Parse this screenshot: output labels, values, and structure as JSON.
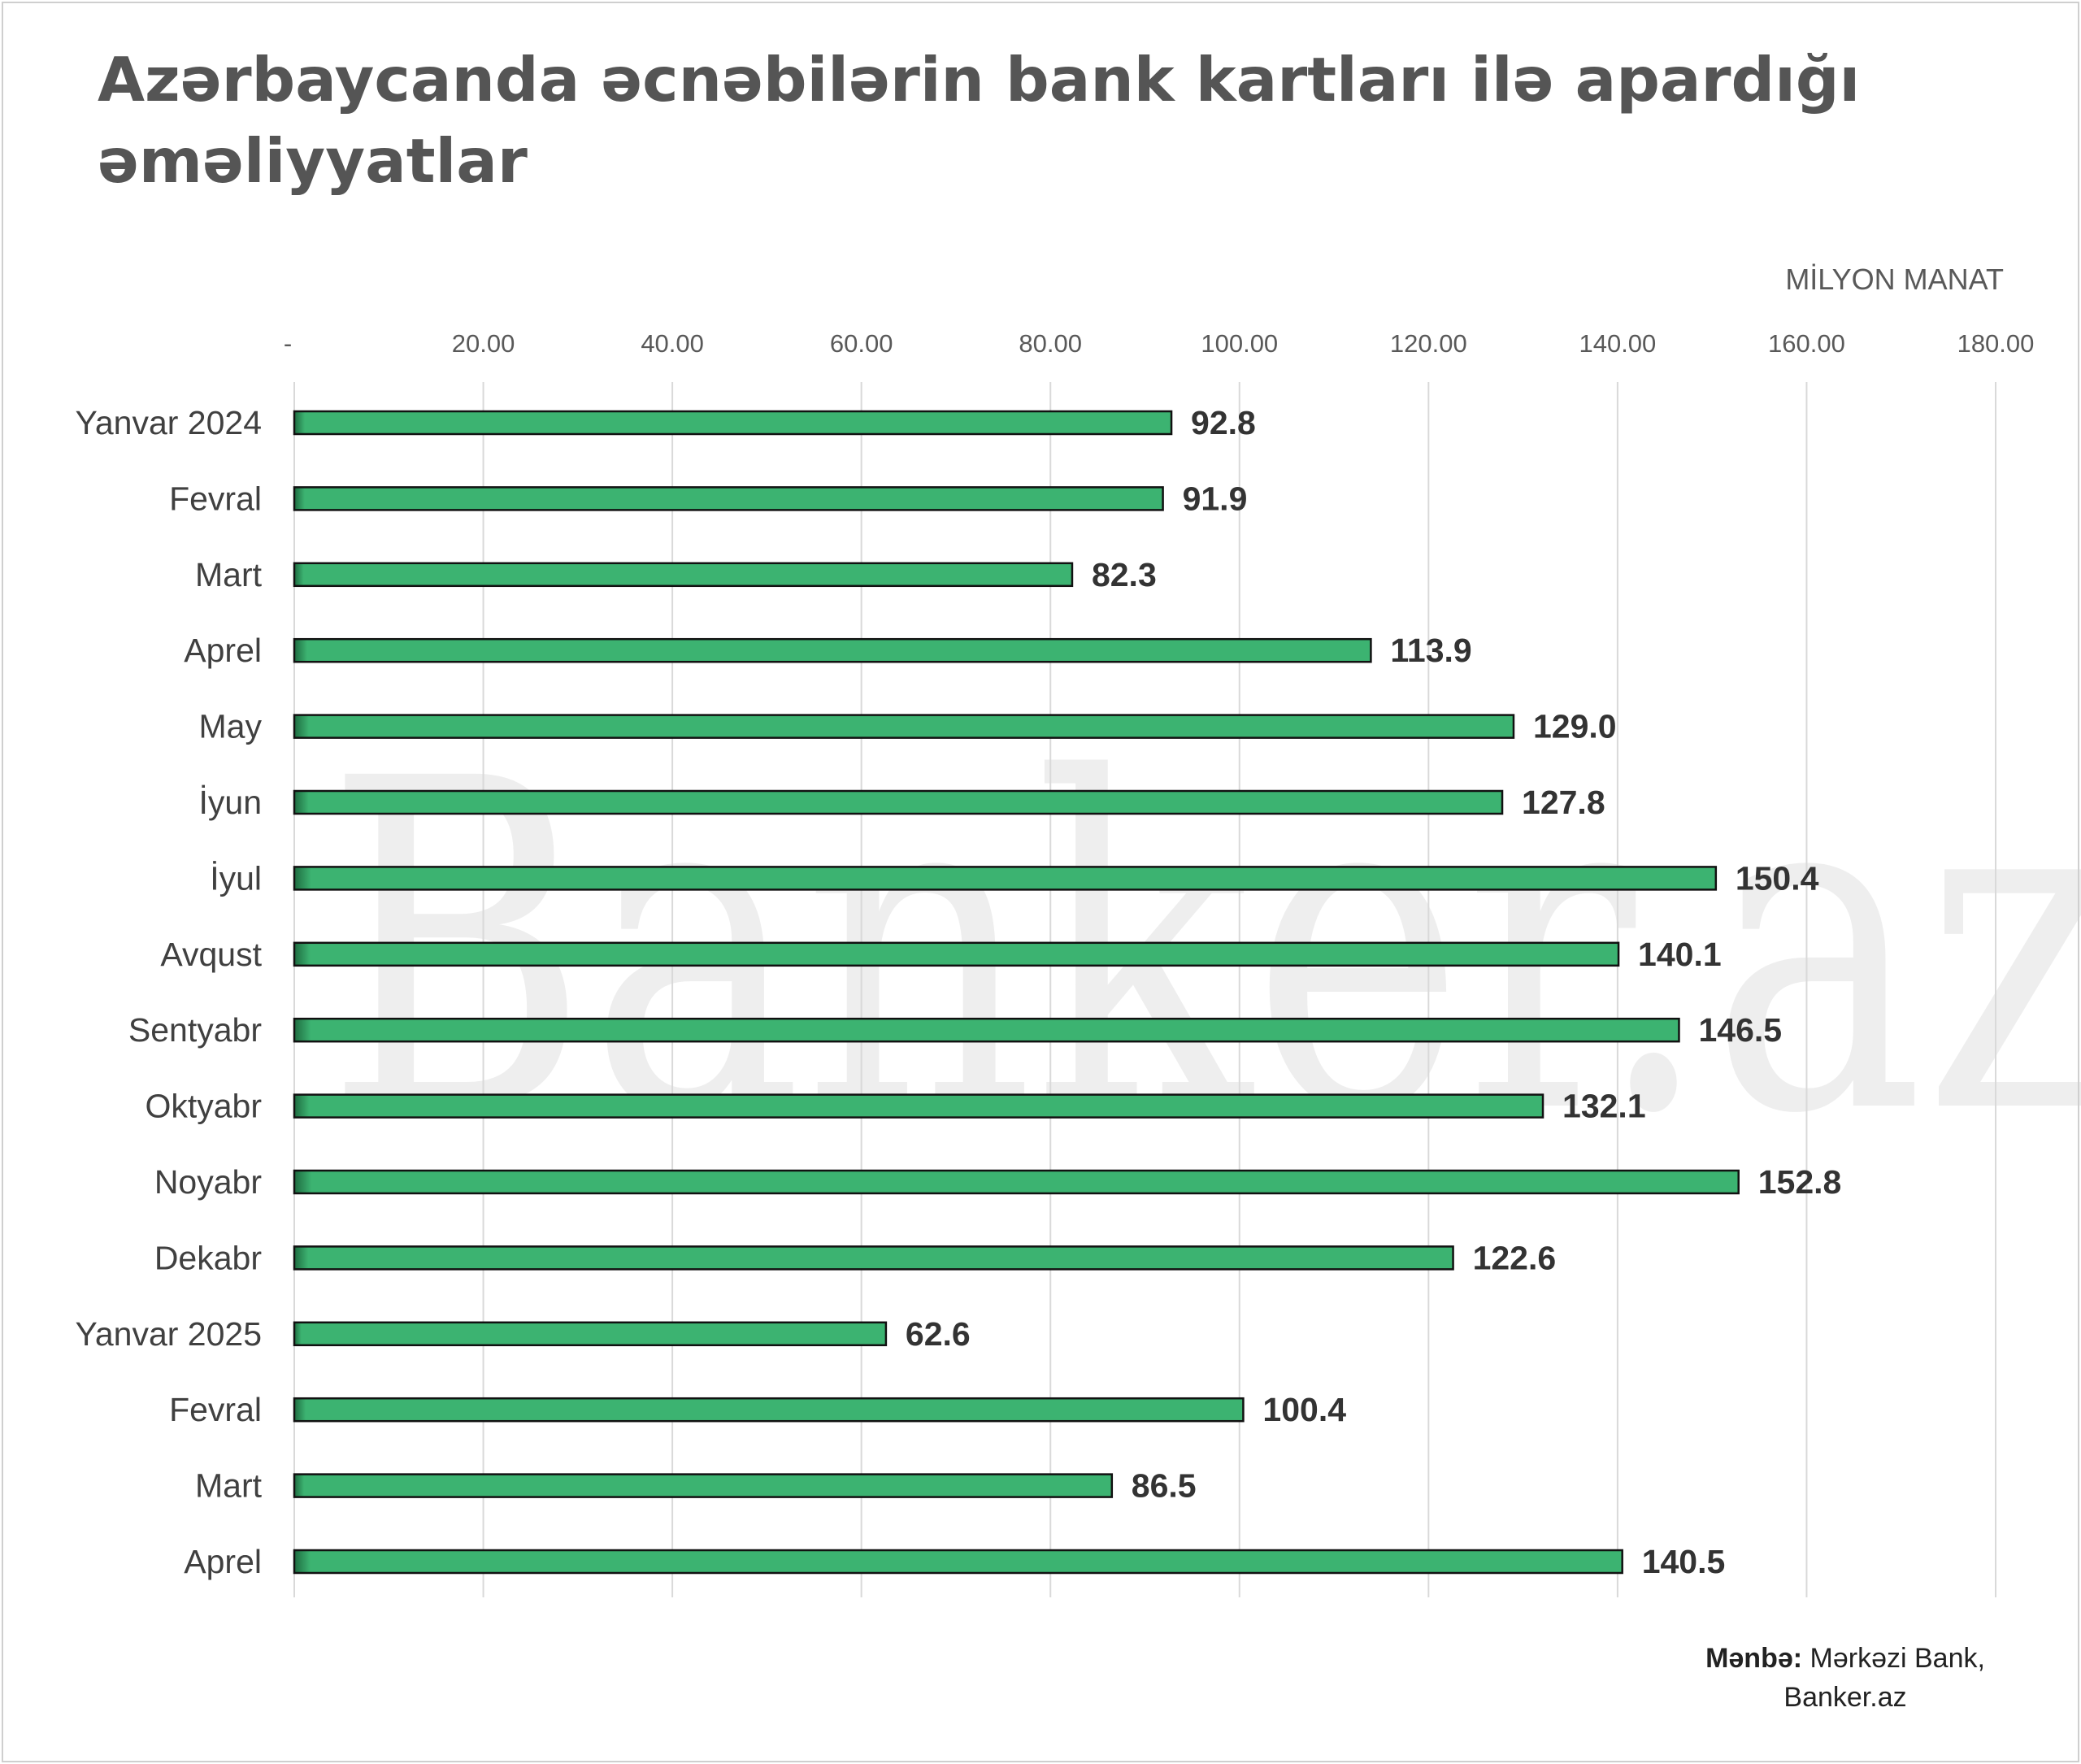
{
  "title": "Azərbaycanda əcnəbilərin bank kartları ilə apardığı əməliyyatlar",
  "watermark": "Banker.az",
  "source": {
    "label": "Mənbə:",
    "line1": "Mərkəzi Bank,",
    "line2": "Banker.az"
  },
  "colors": {
    "bar": "#3cb371",
    "bar_dark": "#1e6b40",
    "bar_outline": "#111111",
    "grid": "#d9d9d9",
    "text": "#404040",
    "value_label": "#333333",
    "watermark": "#cfcfcf"
  },
  "chart_data": {
    "type": "bar",
    "orientation": "horizontal",
    "unit_label": "MİLYON MANAT",
    "categories": [
      "Yanvar 2024",
      "Fevral",
      "Mart",
      "Aprel",
      "May",
      "İyun",
      "İyul",
      "Avqust",
      "Sentyabr",
      "Oktyabr",
      "Noyabr",
      "Dekabr",
      "Yanvar 2025",
      "Fevral",
      "Mart",
      "Aprel"
    ],
    "values": [
      92.8,
      91.9,
      82.3,
      113.9,
      129.0,
      127.8,
      150.4,
      140.1,
      146.5,
      132.1,
      152.8,
      122.6,
      62.6,
      100.4,
      86.5,
      140.5
    ],
    "value_labels": [
      "92.8",
      "91.9",
      "82.3",
      "113.9",
      "129.0",
      "127.8",
      "150.4",
      "140.1",
      "146.5",
      "132.1",
      "152.8",
      "122.6",
      "62.6",
      "100.4",
      "86.5",
      "140.5"
    ],
    "xlim": [
      0,
      180
    ],
    "x_ticks": [
      0,
      20,
      40,
      60,
      80,
      100,
      120,
      140,
      160,
      180
    ],
    "x_tick_labels": [
      "-",
      "20.00",
      "40.00",
      "60.00",
      "80.00",
      "100.00",
      "120.00",
      "140.00",
      "160.00",
      "180.00"
    ],
    "x_axis_position": "top",
    "grid": true,
    "legend": false
  }
}
